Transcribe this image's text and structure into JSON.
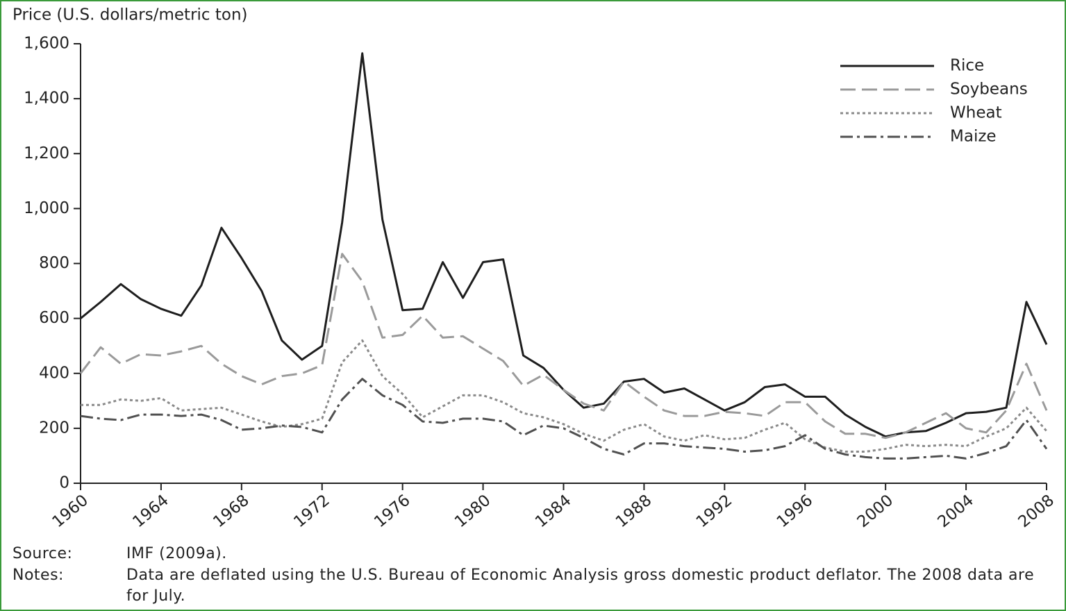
{
  "chart_data": {
    "type": "line",
    "y_label": "Price (U.S. dollars/metric ton)",
    "x": [
      1960,
      1961,
      1962,
      1963,
      1964,
      1965,
      1966,
      1967,
      1968,
      1969,
      1970,
      1971,
      1972,
      1973,
      1974,
      1975,
      1976,
      1977,
      1978,
      1979,
      1980,
      1981,
      1982,
      1983,
      1984,
      1985,
      1986,
      1987,
      1988,
      1989,
      1990,
      1991,
      1992,
      1993,
      1994,
      1995,
      1996,
      1997,
      1998,
      1999,
      2000,
      2001,
      2002,
      2003,
      2004,
      2005,
      2006,
      2007,
      2008
    ],
    "xlim": [
      1960,
      2008
    ],
    "xticks": [
      1960,
      1964,
      1968,
      1972,
      1976,
      1980,
      1984,
      1988,
      1992,
      1996,
      2000,
      2004,
      2008
    ],
    "ylim": [
      0,
      1600
    ],
    "yticks": [
      0,
      200,
      400,
      600,
      800,
      {
        "value": 1000,
        "label": "1,000"
      },
      {
        "value": 1200,
        "label": "1,200"
      },
      {
        "value": 1400,
        "label": "1,400"
      },
      {
        "value": 1600,
        "label": "1,600"
      }
    ],
    "grid": false,
    "legend": "top-right",
    "series": [
      {
        "name": "Rice",
        "color": "#1e1e1e",
        "dash": "solid",
        "values": [
          600,
          660,
          725,
          670,
          635,
          610,
          720,
          930,
          820,
          700,
          520,
          450,
          500,
          950,
          1565,
          960,
          630,
          635,
          805,
          675,
          805,
          815,
          465,
          420,
          340,
          275,
          290,
          370,
          380,
          330,
          345,
          305,
          265,
          295,
          350,
          360,
          315,
          315,
          250,
          205,
          170,
          185,
          190,
          220,
          255,
          260,
          275,
          660,
          505
        ]
      },
      {
        "name": "Soybeans",
        "color": "#9a9a9a",
        "dash": "dashed",
        "values": [
          400,
          495,
          435,
          470,
          465,
          480,
          500,
          435,
          390,
          360,
          390,
          400,
          430,
          835,
          735,
          530,
          540,
          610,
          530,
          535,
          490,
          445,
          355,
          395,
          340,
          290,
          265,
          370,
          315,
          265,
          245,
          245,
          260,
          255,
          245,
          295,
          295,
          225,
          180,
          180,
          165,
          185,
          220,
          255,
          200,
          185,
          265,
          435,
          265
        ]
      },
      {
        "name": "Wheat",
        "color": "#8a8a8a",
        "dash": "dotted",
        "values": [
          285,
          285,
          305,
          300,
          310,
          265,
          270,
          275,
          250,
          225,
          205,
          215,
          235,
          440,
          520,
          390,
          325,
          240,
          280,
          320,
          320,
          295,
          255,
          240,
          215,
          180,
          155,
          195,
          215,
          170,
          155,
          175,
          160,
          165,
          195,
          220,
          160,
          130,
          115,
          115,
          125,
          140,
          135,
          140,
          135,
          170,
          200,
          275,
          190
        ]
      },
      {
        "name": "Maize",
        "color": "#505050",
        "dash": "dashdot",
        "values": [
          245,
          235,
          230,
          250,
          250,
          245,
          250,
          230,
          195,
          200,
          210,
          205,
          185,
          305,
          380,
          320,
          285,
          225,
          220,
          235,
          235,
          225,
          175,
          210,
          200,
          165,
          125,
          105,
          145,
          145,
          135,
          130,
          125,
          115,
          120,
          135,
          175,
          125,
          105,
          95,
          90,
          90,
          95,
          100,
          90,
          110,
          135,
          230,
          125
        ]
      }
    ],
    "source_label": "Source:",
    "source": "IMF (2009a).",
    "notes_label": "Notes:",
    "notes": "Data are deflated using the U.S. Bureau of Economic Analysis gross domestic product deflator. The 2008 data are for July."
  }
}
